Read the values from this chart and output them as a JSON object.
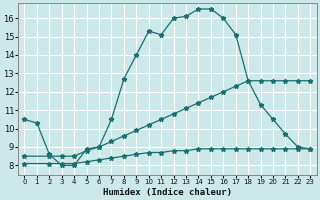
{
  "xlabel": "Humidex (Indice chaleur)",
  "bg_color": "#cce8e8",
  "line_color": "#1a7070",
  "grid_color": "#ffffff",
  "xlim": [
    -0.5,
    23.5
  ],
  "ylim": [
    7.5,
    16.8
  ],
  "xticks": [
    0,
    1,
    2,
    3,
    4,
    5,
    6,
    7,
    8,
    9,
    10,
    11,
    12,
    13,
    14,
    15,
    16,
    17,
    18,
    19,
    20,
    21,
    22,
    23
  ],
  "yticks": [
    8,
    9,
    10,
    11,
    12,
    13,
    14,
    15,
    16
  ],
  "line1_x": [
    0,
    1,
    2,
    3,
    4,
    5,
    6,
    7,
    8,
    9,
    10,
    11,
    12,
    13,
    14,
    15,
    16,
    17,
    18,
    19,
    20,
    21,
    22,
    23
  ],
  "line1_y": [
    10.5,
    10.3,
    8.6,
    8.0,
    8.0,
    8.9,
    9.0,
    10.5,
    12.7,
    14.0,
    15.3,
    15.1,
    16.0,
    16.1,
    16.5,
    16.5,
    16.0,
    15.1,
    12.6,
    11.3,
    10.5,
    9.7,
    9.0,
    8.9
  ],
  "line2_x": [
    0,
    2,
    3,
    4,
    5,
    6,
    7,
    8,
    9,
    10,
    11,
    12,
    13,
    14,
    15,
    16,
    17,
    18,
    19,
    20,
    21,
    22,
    23
  ],
  "line2_y": [
    8.5,
    8.5,
    8.5,
    8.5,
    8.8,
    9.0,
    9.3,
    9.6,
    9.9,
    10.2,
    10.5,
    10.8,
    11.1,
    11.4,
    11.7,
    12.0,
    12.3,
    12.6,
    12.6,
    12.6,
    12.6,
    12.6,
    12.6
  ],
  "line3_x": [
    0,
    2,
    3,
    4,
    5,
    6,
    7,
    8,
    9,
    10,
    11,
    12,
    13,
    14,
    15,
    16,
    17,
    18,
    19,
    20,
    21,
    22,
    23
  ],
  "line3_y": [
    8.1,
    8.1,
    8.1,
    8.1,
    8.2,
    8.3,
    8.4,
    8.5,
    8.6,
    8.7,
    8.7,
    8.8,
    8.8,
    8.9,
    8.9,
    8.9,
    8.9,
    8.9,
    8.9,
    8.9,
    8.9,
    8.9,
    8.9
  ]
}
